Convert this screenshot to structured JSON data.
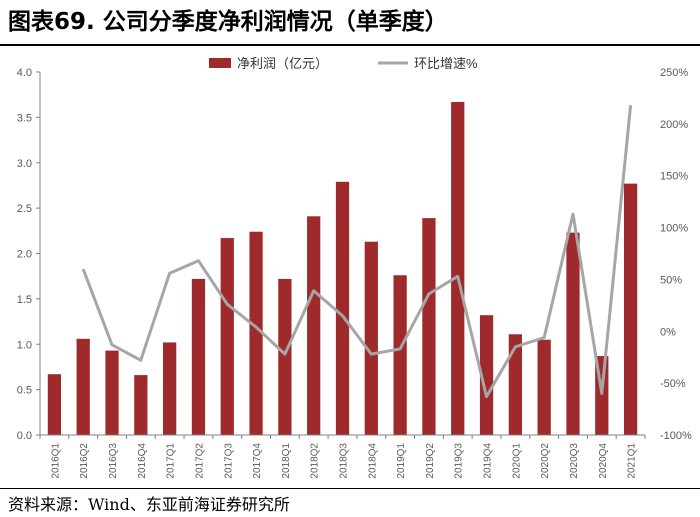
{
  "title": "图表69. 公司分季度净利润情况（单季度）",
  "source": "资料来源：Wind、东亚前海证券研究所",
  "colors": {
    "bar": "#9e2a2b",
    "line": "#a6a6a6",
    "axis": "#808080",
    "text": "#595959"
  },
  "chart_data": {
    "type": "bar",
    "categories": [
      "2016Q1",
      "2016Q2",
      "2016Q3",
      "2016Q4",
      "2017Q1",
      "2017Q2",
      "2017Q3",
      "2017Q4",
      "2018Q1",
      "2018Q2",
      "2018Q3",
      "2018Q4",
      "2019Q1",
      "2019Q2",
      "2019Q3",
      "2019Q4",
      "2020Q1",
      "2020Q2",
      "2020Q3",
      "2020Q4",
      "2021Q1"
    ],
    "category_labels": [
      "2016Q1",
      "2016Q2",
      "2016Q3",
      "2016Q4",
      "2017Q1",
      "2017Q2",
      "2017Q3",
      "2017Q4",
      "2018Q1",
      "2018Q2",
      "2018Q3",
      "2018Q4",
      "2019Q1",
      "2019Q2",
      "2019Q3",
      "2019Q4",
      "2020Q1",
      "2020Q2",
      "2020Q3",
      "2020Q4",
      "2021Q1"
    ],
    "series": [
      {
        "name": "净利润（亿元）",
        "type": "bar",
        "axis": "left",
        "values": [
          0.67,
          1.06,
          0.93,
          0.66,
          1.02,
          1.72,
          2.17,
          2.24,
          1.72,
          2.41,
          2.79,
          2.13,
          1.76,
          2.39,
          3.67,
          1.32,
          1.11,
          1.05,
          2.23,
          0.87,
          2.77
        ]
      },
      {
        "name": "环比增速%",
        "type": "line",
        "axis": "right",
        "values": [
          null,
          60,
          -13,
          -28,
          56,
          68,
          26,
          4,
          -22,
          39,
          15,
          -22,
          -17,
          36,
          53,
          -63,
          -15,
          -6,
          113,
          -60,
          218
        ]
      }
    ],
    "left_axis": {
      "min": 0,
      "max": 4.0,
      "ticks": [
        "0.0",
        "0.5",
        "1.0",
        "1.5",
        "2.0",
        "2.5",
        "3.0",
        "3.5",
        "4.0"
      ]
    },
    "right_axis": {
      "min": -100,
      "max": 250,
      "ticks": [
        "-100%",
        "-50%",
        "0%",
        "50%",
        "100%",
        "150%",
        "200%",
        "250%"
      ]
    },
    "legend": {
      "position": "top-center"
    },
    "grid": false
  }
}
